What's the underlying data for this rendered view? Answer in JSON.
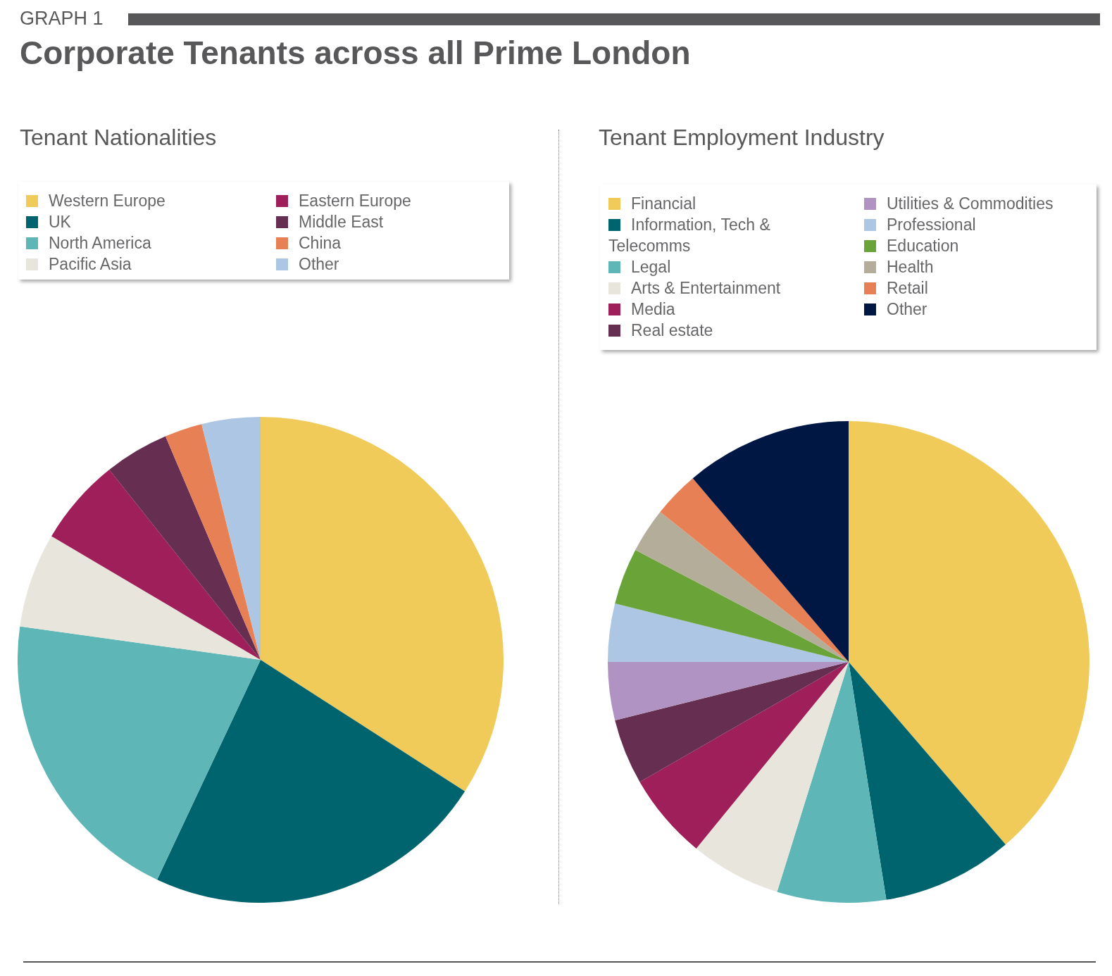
{
  "chart_data": [
    {
      "type": "pie",
      "title": "Tenant Nationalities",
      "annotations": [
        "GRAPH 1",
        "Corporate Tenants across all Prime London"
      ],
      "categories": [
        "Western Europe",
        "UK",
        "North America",
        "Pacific Asia",
        "Eastern Europe",
        "Middle East",
        "China",
        "Other"
      ],
      "values": [
        34.1,
        22.9,
        20.2,
        6.3,
        5.8,
        4.3,
        2.5,
        3.9
      ],
      "colors": [
        "#f0cb5a",
        "#00646e",
        "#5fb6b6",
        "#e8e5dd",
        "#9e1f5a",
        "#662e50",
        "#e88055",
        "#adc6e3"
      ],
      "legend": "top"
    },
    {
      "type": "pie",
      "title": "Tenant Employment Industry",
      "categories": [
        "Financial",
        "Information, Tech & Telecomms",
        "Legal",
        "Arts & Entertainment",
        "Media",
        "Real estate",
        "Utilities & Commodities",
        "Professional",
        "Education",
        "Health",
        "Retail",
        "Other"
      ],
      "values": [
        38.7,
        8.8,
        7.3,
        6.1,
        5.8,
        4.4,
        3.9,
        3.9,
        3.8,
        3.0,
        3.1,
        11.2
      ],
      "colors": [
        "#f0cb5a",
        "#00646e",
        "#5fb6b6",
        "#e8e5dd",
        "#9e1f5a",
        "#662e50",
        "#b093c3",
        "#adc6e3",
        "#6aa337",
        "#b3ad9a",
        "#e88055",
        "#001744"
      ],
      "legend": "top"
    }
  ]
}
